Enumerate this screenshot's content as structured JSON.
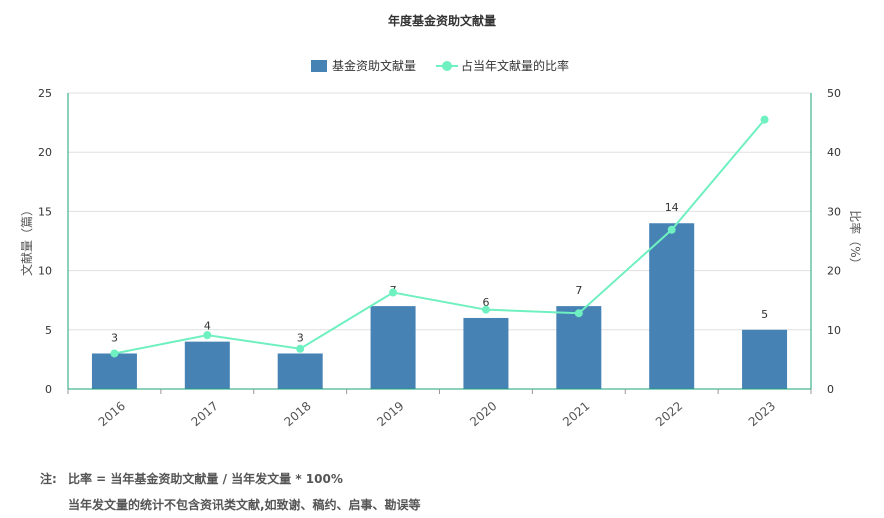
{
  "chart_data": {
    "type": "bar",
    "title": "年度基金资助文献量",
    "categories": [
      "2016",
      "2017",
      "2018",
      "2019",
      "2020",
      "2021",
      "2022",
      "2023"
    ],
    "series": [
      {
        "name": "基金资助文献量",
        "type": "bar",
        "axis": "left",
        "color": "#4682b4",
        "values": [
          3,
          4,
          3,
          7,
          6,
          7,
          14,
          5
        ]
      },
      {
        "name": "占当年文献量的比率",
        "type": "line",
        "axis": "right",
        "color": "#6ff0c0",
        "values": [
          6,
          9.1,
          6.8,
          16.3,
          13.4,
          12.8,
          26.9,
          45.5
        ]
      }
    ],
    "ylabel_left": "文献量（篇）",
    "ylabel_right": "比率（%）",
    "ylim_left": [
      0,
      25
    ],
    "yticks_left": [
      0,
      5,
      10,
      15,
      20,
      25
    ],
    "ylim_right": [
      0,
      50
    ],
    "yticks_right": [
      0,
      10,
      20,
      30,
      40,
      50
    ],
    "legend_position": "top-center",
    "grid": true,
    "axis_color": "#1aa37a"
  },
  "notes": {
    "prefix": "注:",
    "line1": "比率 = 当年基金资助文献量 / 当年发文量 * 100%",
    "line2": "当年发文量的统计不包含资讯类文献,如致谢、稿约、启事、勘误等"
  }
}
